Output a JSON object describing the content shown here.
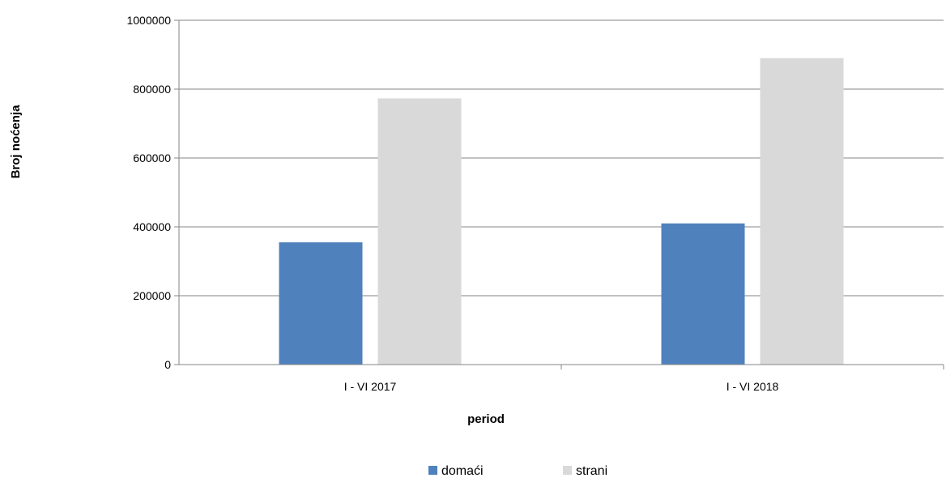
{
  "chart_data": {
    "type": "bar",
    "title": "",
    "xlabel": "period",
    "ylabel": "Broj noćenja",
    "categories": [
      "I - VI 2017",
      "I - VI 2018"
    ],
    "series": [
      {
        "name": "domaći",
        "values": [
          355000,
          410000
        ],
        "color": "#4f81bd"
      },
      {
        "name": "strani",
        "values": [
          773000,
          890000
        ],
        "color": "#d9d9d9"
      }
    ],
    "ylim": [
      0,
      1000000
    ],
    "yticks": [
      0,
      200000,
      400000,
      600000,
      800000,
      1000000
    ],
    "grid": true,
    "legend": "bottom"
  }
}
